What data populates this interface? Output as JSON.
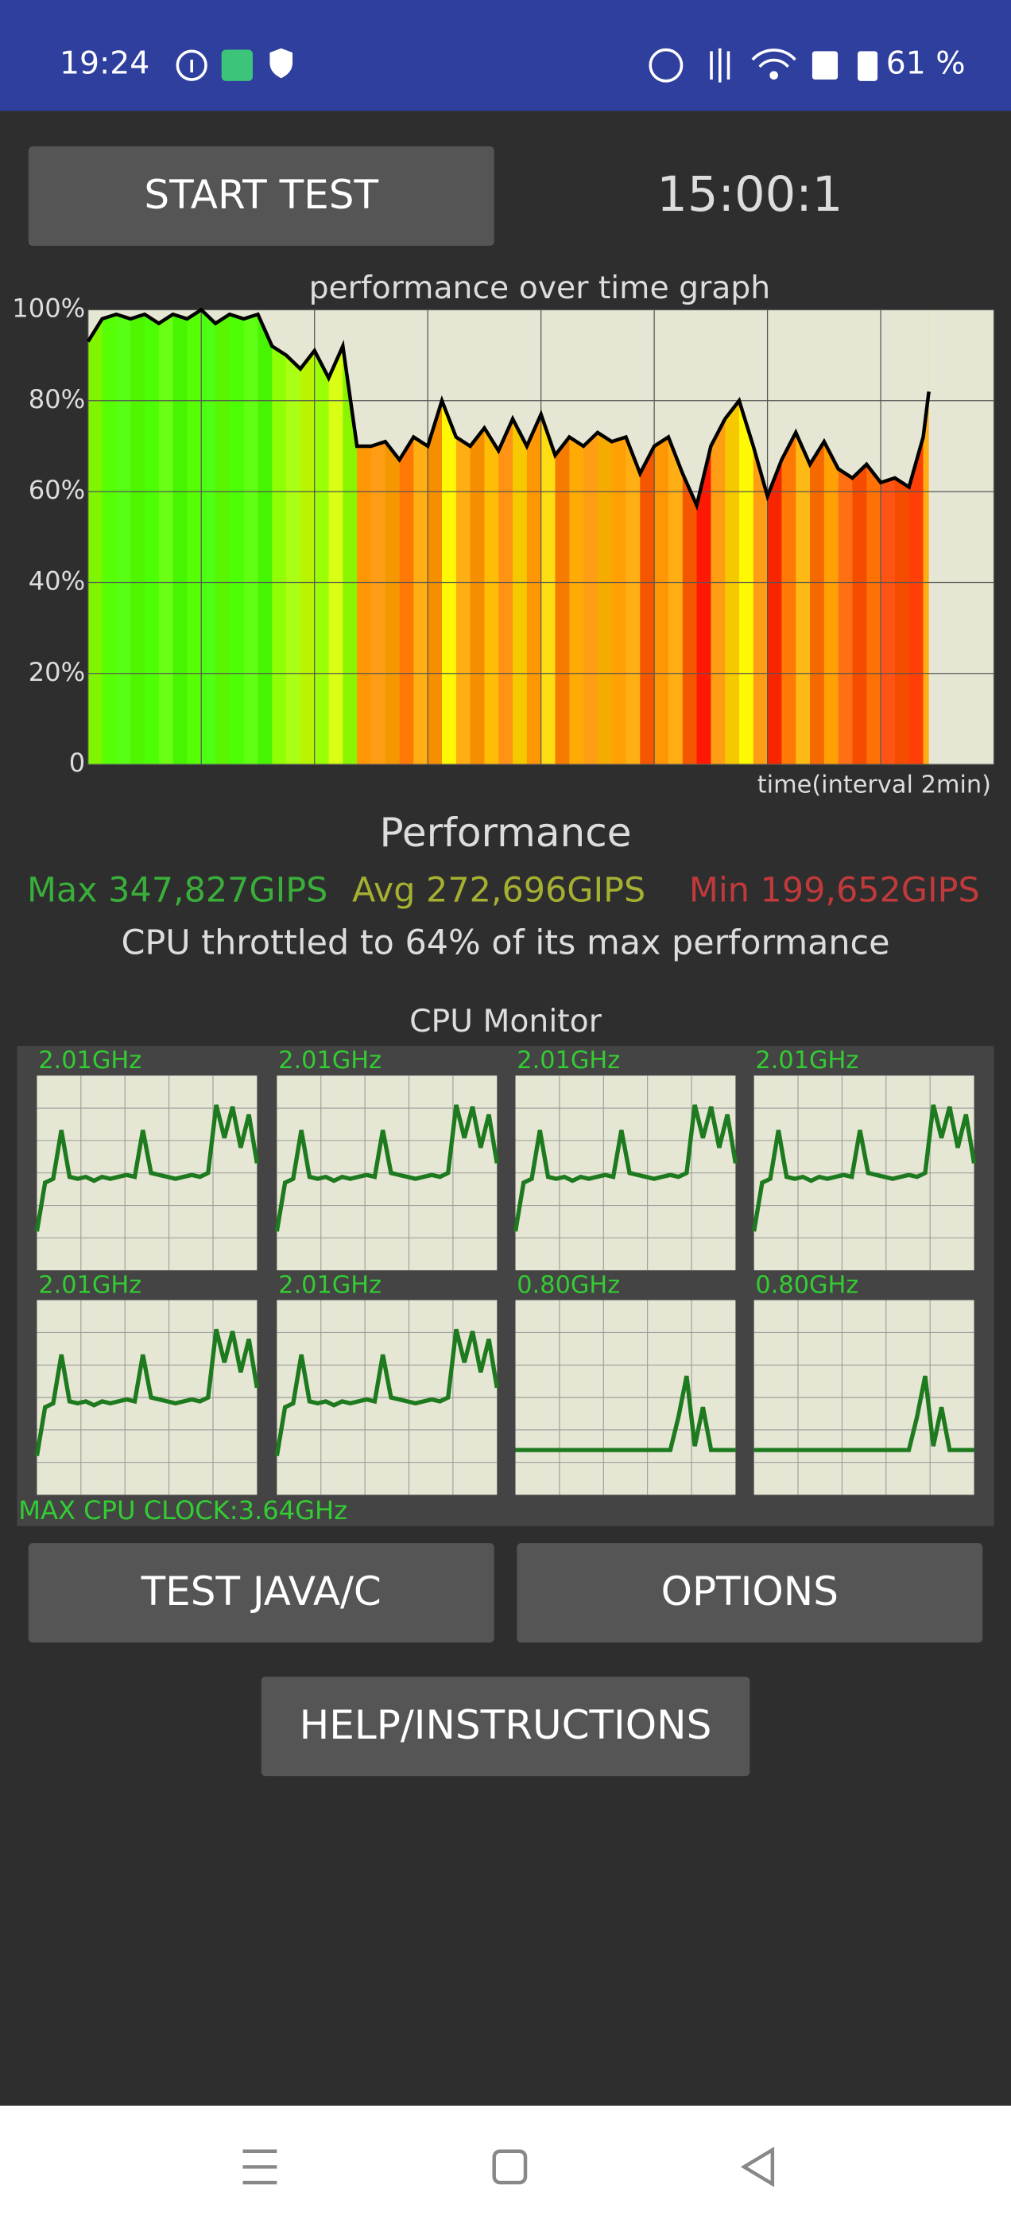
{
  "status_bar": {
    "time": "19:24",
    "battery": "61 %"
  },
  "buttons": {
    "start": "START TEST",
    "java": "TEST JAVA/C",
    "options": "OPTIONS",
    "help": "HELP/INSTRUCTIONS"
  },
  "timer": "15:00:1",
  "chart_data": {
    "type": "line",
    "title": "performance over time graph",
    "x_label": "time(interval 2min)",
    "xlim": [
      0,
      16
    ],
    "xticks": [
      0,
      2,
      4,
      6,
      8,
      10,
      12,
      14,
      16
    ],
    "ylim": [
      0,
      100
    ],
    "yticks": [
      {
        "value": 0,
        "label": "0"
      },
      {
        "value": 20,
        "label": "20%"
      },
      {
        "value": 40,
        "label": "40%"
      },
      {
        "value": 60,
        "label": "60%"
      },
      {
        "value": 80,
        "label": "80%"
      },
      {
        "value": 100,
        "label": "100%"
      }
    ],
    "grid": true,
    "x": [
      0,
      0.25,
      0.5,
      0.75,
      1,
      1.25,
      1.5,
      1.75,
      2,
      2.25,
      2.5,
      2.75,
      3,
      3.25,
      3.5,
      3.75,
      4,
      4.25,
      4.5,
      4.75,
      5,
      5.25,
      5.5,
      5.75,
      6,
      6.25,
      6.5,
      6.75,
      7,
      7.25,
      7.5,
      7.75,
      8,
      8.25,
      8.5,
      8.75,
      9,
      9.25,
      9.5,
      9.75,
      10,
      10.25,
      10.5,
      10.75,
      11,
      11.25,
      11.5,
      11.75,
      12,
      12.25,
      12.5,
      12.75,
      13,
      13.25,
      13.5,
      13.75,
      14,
      14.25,
      14.5,
      14.75,
      14.85
    ],
    "series": [
      {
        "color": "#000000",
        "values": [
          93,
          98,
          99,
          98,
          99,
          97,
          99,
          98,
          100,
          97,
          99,
          98,
          99,
          92,
          90,
          87,
          91,
          85,
          92,
          70,
          70,
          71,
          67,
          72,
          70,
          80,
          72,
          70,
          74,
          69,
          76,
          70,
          77,
          68,
          72,
          70,
          73,
          71,
          72,
          64,
          70,
          72,
          64,
          57,
          70,
          76,
          80,
          70,
          59,
          67,
          73,
          66,
          71,
          65,
          63,
          66,
          62,
          63,
          61,
          72,
          82
        ]
      }
    ]
  },
  "performance": {
    "title": "Performance",
    "max": "Max 347,827GIPS",
    "avg": "Avg 272,696GIPS",
    "min": "Min 199,652GIPS",
    "throttle": "CPU throttled to 64% of its max performance"
  },
  "cpu_monitor": {
    "title": "CPU Monitor",
    "footer": "MAX CPU CLOCK:3.64GHz",
    "ylim": [
      0,
      100
    ],
    "cores": [
      {
        "label": "2.01GHz",
        "values": [
          20,
          45,
          47,
          72,
          48,
          47,
          48,
          46,
          48,
          47,
          48,
          49,
          48,
          72,
          50,
          49,
          48,
          47,
          48,
          49,
          48,
          50,
          85,
          68,
          84,
          63,
          80,
          55
        ]
      },
      {
        "label": "2.01GHz",
        "values": [
          20,
          45,
          47,
          72,
          48,
          47,
          48,
          46,
          48,
          47,
          48,
          49,
          48,
          72,
          50,
          49,
          48,
          47,
          48,
          49,
          48,
          50,
          85,
          68,
          84,
          63,
          80,
          55
        ]
      },
      {
        "label": "2.01GHz",
        "values": [
          20,
          45,
          47,
          72,
          48,
          47,
          48,
          46,
          48,
          47,
          48,
          49,
          48,
          72,
          50,
          49,
          48,
          47,
          48,
          49,
          48,
          50,
          85,
          68,
          84,
          63,
          80,
          55
        ]
      },
      {
        "label": "2.01GHz",
        "values": [
          20,
          45,
          47,
          72,
          48,
          47,
          48,
          46,
          48,
          47,
          48,
          49,
          48,
          72,
          50,
          49,
          48,
          47,
          48,
          49,
          48,
          50,
          85,
          68,
          84,
          63,
          80,
          55
        ]
      },
      {
        "label": "2.01GHz",
        "values": [
          20,
          45,
          47,
          72,
          48,
          47,
          48,
          46,
          48,
          47,
          48,
          49,
          48,
          72,
          50,
          49,
          48,
          47,
          48,
          49,
          48,
          50,
          85,
          68,
          84,
          63,
          80,
          55
        ]
      },
      {
        "label": "2.01GHz",
        "values": [
          20,
          45,
          47,
          72,
          48,
          47,
          48,
          46,
          48,
          47,
          48,
          49,
          48,
          72,
          50,
          49,
          48,
          47,
          48,
          49,
          48,
          50,
          85,
          68,
          84,
          63,
          80,
          55
        ]
      },
      {
        "label": "0.80GHz",
        "values": [
          23,
          23,
          23,
          23,
          23,
          23,
          23,
          23,
          23,
          23,
          23,
          23,
          23,
          23,
          23,
          23,
          23,
          23,
          23,
          23,
          40,
          61,
          25,
          45,
          23,
          23,
          23,
          23
        ]
      },
      {
        "label": "0.80GHz",
        "values": [
          23,
          23,
          23,
          23,
          23,
          23,
          23,
          23,
          23,
          23,
          23,
          23,
          23,
          23,
          23,
          23,
          23,
          23,
          23,
          23,
          40,
          61,
          25,
          45,
          23,
          23,
          23,
          23
        ]
      }
    ]
  }
}
